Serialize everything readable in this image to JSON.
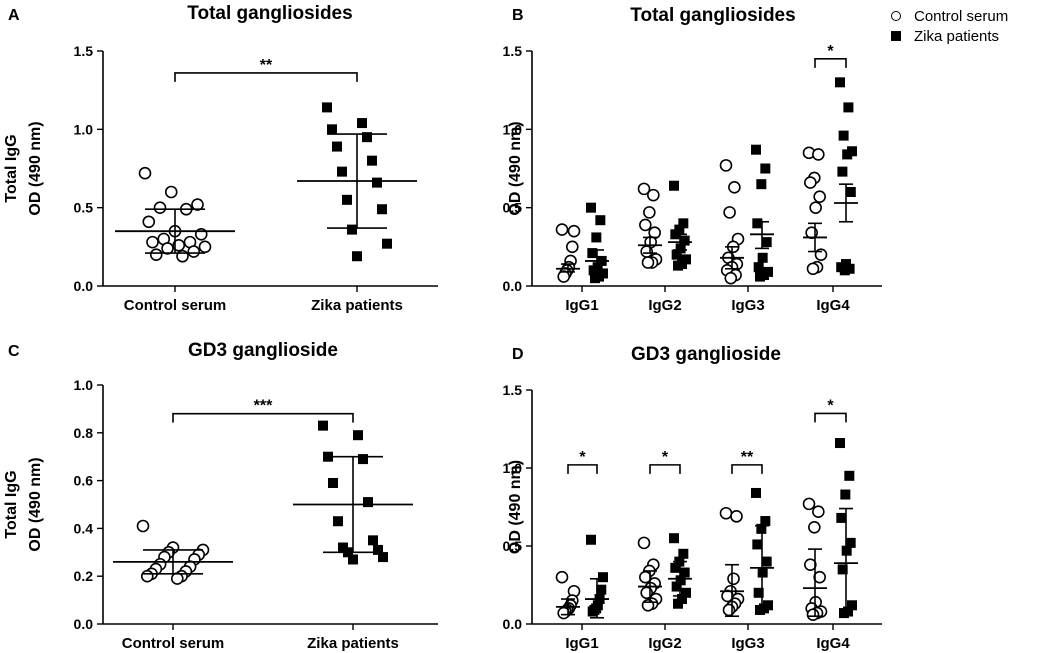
{
  "legend": {
    "control": "Control serum",
    "zika": "Zika patients"
  },
  "chart_data": [
    {
      "panel": "A",
      "type": "scatter",
      "title": "Total gangliosides",
      "ylabel": [
        "Total IgG",
        "OD (490 nm)"
      ],
      "ylim": [
        0,
        1.5
      ],
      "yticks": [
        0.0,
        0.5,
        1.0,
        1.5
      ],
      "tick_labels": [
        "0.0",
        "0.5",
        "1.0",
        "1.5"
      ],
      "groups": [
        {
          "name": "Control serum",
          "marker": "circle",
          "mean": 0.35,
          "err_hi": 0.49,
          "err_lo": 0.21,
          "values": [
            0.72,
            0.6,
            0.52,
            0.5,
            0.49,
            0.41,
            0.35,
            0.33,
            0.3,
            0.28,
            0.28,
            0.26,
            0.25,
            0.24,
            0.22,
            0.2,
            0.19
          ]
        },
        {
          "name": "Zika patients",
          "marker": "square",
          "mean": 0.67,
          "err_hi": 0.97,
          "err_lo": 0.37,
          "values": [
            1.14,
            1.04,
            1.0,
            0.95,
            0.89,
            0.8,
            0.73,
            0.66,
            0.55,
            0.49,
            0.36,
            0.27,
            0.19
          ]
        }
      ],
      "significance": [
        {
          "label": "**",
          "y": 1.36,
          "from": 0,
          "to": 1
        }
      ]
    },
    {
      "panel": "B",
      "type": "scatter",
      "title": "Total gangliosides",
      "ylabel": [
        "OD (490 nm)"
      ],
      "ylim": [
        0,
        1.5
      ],
      "yticks": [
        0.0,
        0.5,
        1.0,
        1.5
      ],
      "tick_labels": [
        "0.0",
        "0.5",
        "1.0",
        "1.5"
      ],
      "categories": [
        "IgG1",
        "IgG2",
        "IgG3",
        "IgG4"
      ],
      "groups": [
        {
          "cat": 0,
          "marker": "circle",
          "mean": 0.11,
          "err_hi": 0.14,
          "err_lo": 0.09,
          "values": [
            0.36,
            0.35,
            0.25,
            0.16,
            0.12,
            0.1,
            0.08,
            0.06
          ]
        },
        {
          "cat": 0,
          "marker": "square",
          "mean": 0.16,
          "err_hi": 0.23,
          "err_lo": 0.1,
          "values": [
            0.5,
            0.42,
            0.31,
            0.21,
            0.16,
            0.12,
            0.1,
            0.08,
            0.06,
            0.05
          ]
        },
        {
          "cat": 1,
          "marker": "circle",
          "mean": 0.26,
          "err_hi": 0.31,
          "err_lo": 0.21,
          "values": [
            0.62,
            0.58,
            0.47,
            0.39,
            0.34,
            0.28,
            0.22,
            0.17,
            0.15,
            0.15
          ]
        },
        {
          "cat": 1,
          "marker": "square",
          "mean": 0.28,
          "err_hi": 0.33,
          "err_lo": 0.23,
          "values": [
            0.64,
            0.4,
            0.36,
            0.33,
            0.29,
            0.24,
            0.2,
            0.17,
            0.14,
            0.13
          ]
        },
        {
          "cat": 2,
          "marker": "circle",
          "mean": 0.18,
          "err_hi": 0.25,
          "err_lo": 0.11,
          "values": [
            0.77,
            0.63,
            0.47,
            0.3,
            0.25,
            0.18,
            0.14,
            0.12,
            0.1,
            0.07,
            0.05
          ]
        },
        {
          "cat": 2,
          "marker": "square",
          "mean": 0.33,
          "err_hi": 0.41,
          "err_lo": 0.24,
          "values": [
            0.87,
            0.75,
            0.65,
            0.4,
            0.28,
            0.18,
            0.12,
            0.09,
            0.07,
            0.06
          ]
        },
        {
          "cat": 3,
          "marker": "circle",
          "mean": 0.31,
          "err_hi": 0.4,
          "err_lo": 0.22,
          "values": [
            0.85,
            0.84,
            0.69,
            0.66,
            0.57,
            0.5,
            0.34,
            0.2,
            0.12,
            0.11
          ]
        },
        {
          "cat": 3,
          "marker": "square",
          "mean": 0.53,
          "err_hi": 0.65,
          "err_lo": 0.41,
          "values": [
            1.3,
            1.14,
            0.96,
            0.86,
            0.84,
            0.73,
            0.6,
            0.14,
            0.12,
            0.11,
            0.1
          ]
        }
      ],
      "significance": [
        {
          "label": "*",
          "y": 1.45,
          "cat": 3
        }
      ]
    },
    {
      "panel": "C",
      "type": "scatter",
      "title": "GD3 ganglioside",
      "ylabel": [
        "Total IgG",
        "OD (490 nm)"
      ],
      "ylim": [
        0,
        1.0
      ],
      "yticks": [
        0.0,
        0.2,
        0.4,
        0.6,
        0.8,
        1.0
      ],
      "tick_labels": [
        "0.0",
        "0.2",
        "0.4",
        "0.6",
        "0.8",
        "1.0"
      ],
      "groups": [
        {
          "name": "Control serum",
          "marker": "circle",
          "mean": 0.26,
          "err_hi": 0.31,
          "err_lo": 0.21,
          "values": [
            0.41,
            0.32,
            0.31,
            0.3,
            0.29,
            0.28,
            0.27,
            0.25,
            0.24,
            0.23,
            0.22,
            0.21,
            0.2,
            0.2,
            0.19
          ]
        },
        {
          "name": "Zika patients",
          "marker": "square",
          "mean": 0.5,
          "err_hi": 0.7,
          "err_lo": 0.3,
          "values": [
            0.83,
            0.79,
            0.7,
            0.69,
            0.59,
            0.51,
            0.43,
            0.35,
            0.32,
            0.31,
            0.3,
            0.28,
            0.27
          ]
        }
      ],
      "significance": [
        {
          "label": "***",
          "y": 0.88,
          "from": 0,
          "to": 1
        }
      ]
    },
    {
      "panel": "D",
      "type": "scatter",
      "title": "GD3 ganglioside",
      "ylabel": [
        "OD (490 nm)"
      ],
      "ylim": [
        0,
        1.5
      ],
      "yticks": [
        0.0,
        0.5,
        1.0,
        1.5
      ],
      "tick_labels": [
        "0.0",
        "0.5",
        "1.0",
        "1.5"
      ],
      "categories": [
        "IgG1",
        "IgG2",
        "IgG3",
        "IgG4"
      ],
      "groups": [
        {
          "cat": 0,
          "marker": "circle",
          "mean": 0.11,
          "err_hi": 0.16,
          "err_lo": 0.06,
          "values": [
            0.3,
            0.21,
            0.15,
            0.12,
            0.1,
            0.09,
            0.08,
            0.07
          ]
        },
        {
          "cat": 0,
          "marker": "square",
          "mean": 0.16,
          "err_hi": 0.29,
          "err_lo": 0.04,
          "values": [
            0.54,
            0.3,
            0.22,
            0.16,
            0.12,
            0.1,
            0.09,
            0.08
          ]
        },
        {
          "cat": 1,
          "marker": "circle",
          "mean": 0.24,
          "err_hi": 0.34,
          "err_lo": 0.14,
          "values": [
            0.52,
            0.38,
            0.34,
            0.3,
            0.26,
            0.23,
            0.2,
            0.16,
            0.13,
            0.12
          ]
        },
        {
          "cat": 1,
          "marker": "square",
          "mean": 0.29,
          "err_hi": 0.4,
          "err_lo": 0.18,
          "values": [
            0.55,
            0.45,
            0.4,
            0.36,
            0.33,
            0.28,
            0.24,
            0.2,
            0.16,
            0.13
          ]
        },
        {
          "cat": 2,
          "marker": "circle",
          "mean": 0.21,
          "err_hi": 0.38,
          "err_lo": 0.05,
          "values": [
            0.71,
            0.69,
            0.29,
            0.21,
            0.18,
            0.16,
            0.13,
            0.11,
            0.09
          ]
        },
        {
          "cat": 2,
          "marker": "square",
          "mean": 0.36,
          "err_hi": 0.63,
          "err_lo": 0.1,
          "values": [
            0.84,
            0.66,
            0.61,
            0.51,
            0.4,
            0.33,
            0.2,
            0.12,
            0.1,
            0.09
          ]
        },
        {
          "cat": 3,
          "marker": "circle",
          "mean": 0.23,
          "err_hi": 0.48,
          "err_lo": 0.05,
          "values": [
            0.77,
            0.72,
            0.62,
            0.38,
            0.3,
            0.14,
            0.1,
            0.08,
            0.07,
            0.06
          ]
        },
        {
          "cat": 3,
          "marker": "square",
          "mean": 0.39,
          "err_hi": 0.74,
          "err_lo": 0.08,
          "values": [
            1.16,
            0.95,
            0.83,
            0.68,
            0.52,
            0.47,
            0.35,
            0.12,
            0.08,
            0.07
          ]
        }
      ],
      "significance": [
        {
          "label": "*",
          "y": 1.02,
          "cat": 0
        },
        {
          "label": "*",
          "y": 1.02,
          "cat": 1
        },
        {
          "label": "**",
          "y": 1.02,
          "cat": 2
        },
        {
          "label": "*",
          "y": 1.35,
          "cat": 3
        }
      ]
    }
  ]
}
